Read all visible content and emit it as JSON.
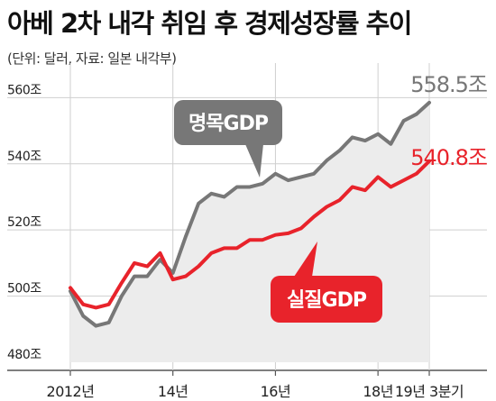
{
  "header": {
    "title": "아베 2차 내각 취임 후 경제성장률 추이",
    "subtitle": "(단위: 달러, 자료: 일본 내각부)"
  },
  "colors": {
    "nominal": "#777777",
    "real": "#e8232b",
    "area": "#ececec",
    "grid": "#cfcfcf",
    "text": "#222222"
  },
  "chart_data": {
    "type": "line",
    "title": "아베 2차 내각 취임 후 경제성장률 추이",
    "subtitle": "(단위: 달러, 자료: 일본 내각부)",
    "ylim": [
      480,
      565
    ],
    "y_ticks": [
      {
        "value": 560,
        "label": "560조"
      },
      {
        "value": 540,
        "label": "540조"
      },
      {
        "value": 520,
        "label": "520조"
      },
      {
        "value": 500,
        "label": "500조"
      },
      {
        "value": 480,
        "label": "480조"
      }
    ],
    "x_ticks": [
      {
        "index": 0,
        "label": "2012년"
      },
      {
        "index": 8,
        "label": "14년"
      },
      {
        "index": 16,
        "label": "16년"
      },
      {
        "index": 24,
        "label": "18년"
      },
      {
        "index": 28,
        "label": "19년 3분기"
      }
    ],
    "grid": true,
    "series": [
      {
        "name": "명목GDP",
        "key": "nominal",
        "end_label": "558.5조",
        "values": [
          501.5,
          494,
          491,
          492,
          500,
          506,
          506,
          511,
          507,
          518,
          528,
          531,
          530,
          533,
          533,
          534,
          537,
          535,
          536,
          537,
          541,
          544,
          548,
          547,
          549,
          546,
          553,
          555,
          558.5
        ]
      },
      {
        "name": "실질GDP",
        "key": "real",
        "end_label": "540.8조",
        "values": [
          502.5,
          497.5,
          496.5,
          497.5,
          504,
          510,
          509,
          513,
          505,
          506,
          509,
          513,
          514.5,
          514.5,
          517,
          517,
          518.5,
          519,
          520.5,
          524,
          527,
          529,
          533,
          532,
          536,
          533,
          535,
          537,
          540.8
        ]
      }
    ]
  }
}
